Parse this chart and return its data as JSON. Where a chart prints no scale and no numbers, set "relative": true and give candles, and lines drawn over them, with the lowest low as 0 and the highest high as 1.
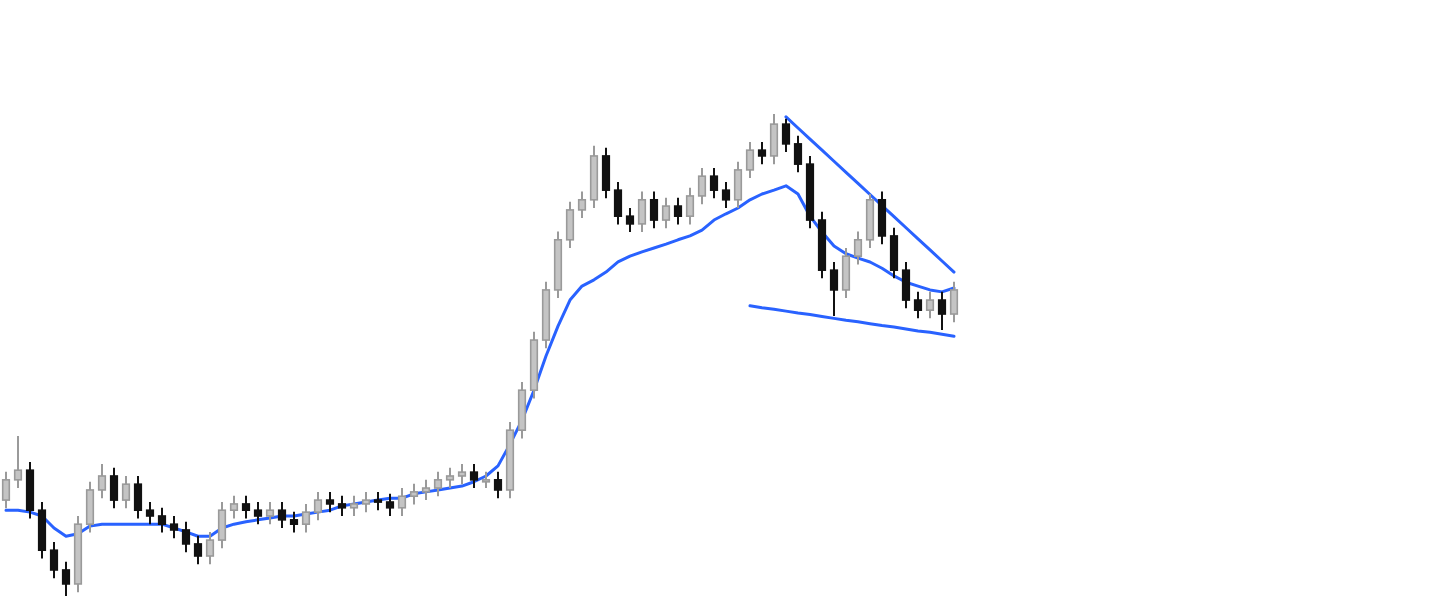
{
  "chart_data": {
    "type": "candlestick",
    "relative": true,
    "tick_labels": false,
    "categories": [
      null,
      null,
      null,
      null,
      null,
      null,
      null,
      null,
      null,
      null,
      null,
      null,
      null,
      null,
      null,
      null,
      null,
      null,
      null,
      null,
      null,
      null,
      null,
      null,
      null,
      null,
      null,
      null,
      null,
      null,
      null,
      null,
      null,
      null,
      null,
      null,
      null,
      null,
      null,
      null,
      null,
      null,
      null,
      null,
      null,
      null,
      null,
      null,
      null,
      null,
      null,
      null,
      null,
      null,
      null,
      null,
      null,
      null,
      null,
      null,
      null,
      null,
      null,
      null,
      null,
      null,
      null,
      null,
      null,
      null,
      null,
      null,
      null,
      null,
      null,
      null,
      null,
      null,
      null,
      null
    ],
    "ohlc": [
      [
        0.199,
        0.258,
        0.182,
        0.241
      ],
      [
        0.241,
        0.332,
        0.224,
        0.261
      ],
      [
        0.261,
        0.278,
        0.161,
        0.178
      ],
      [
        0.178,
        0.195,
        0.078,
        0.095
      ],
      [
        0.095,
        0.112,
        0.037,
        0.054
      ],
      [
        0.054,
        0.071,
        0,
        0.025
      ],
      [
        0.025,
        0.166,
        0.008,
        0.149
      ],
      [
        0.149,
        0.237,
        0.132,
        0.22
      ],
      [
        0.22,
        0.274,
        0.203,
        0.249
      ],
      [
        0.249,
        0.266,
        0.182,
        0.199
      ],
      [
        0.199,
        0.249,
        0.182,
        0.232
      ],
      [
        0.232,
        0.249,
        0.161,
        0.178
      ],
      [
        0.178,
        0.195,
        0.149,
        0.166
      ],
      [
        0.166,
        0.183,
        0.132,
        0.149
      ],
      [
        0.149,
        0.166,
        0.12,
        0.137
      ],
      [
        0.137,
        0.154,
        0.091,
        0.108
      ],
      [
        0.108,
        0.125,
        0.066,
        0.083
      ],
      [
        0.083,
        0.133,
        0.066,
        0.116
      ],
      [
        0.116,
        0.195,
        0.099,
        0.178
      ],
      [
        0.178,
        0.208,
        0.161,
        0.191
      ],
      [
        0.191,
        0.208,
        0.161,
        0.178
      ],
      [
        0.178,
        0.195,
        0.149,
        0.166
      ],
      [
        0.166,
        0.195,
        0.149,
        0.178
      ],
      [
        0.178,
        0.195,
        0.141,
        0.158
      ],
      [
        0.158,
        0.175,
        0.132,
        0.149
      ],
      [
        0.149,
        0.191,
        0.132,
        0.174
      ],
      [
        0.174,
        0.216,
        0.157,
        0.199
      ],
      [
        0.199,
        0.216,
        0.174,
        0.191
      ],
      [
        0.191,
        0.208,
        0.166,
        0.183
      ],
      [
        0.183,
        0.208,
        0.166,
        0.191
      ],
      [
        0.191,
        0.216,
        0.174,
        0.199
      ],
      [
        0.199,
        0.216,
        0.178,
        0.195
      ],
      [
        0.195,
        0.212,
        0.166,
        0.183
      ],
      [
        0.183,
        0.224,
        0.166,
        0.207
      ],
      [
        0.207,
        0.233,
        0.19,
        0.216
      ],
      [
        0.216,
        0.241,
        0.199,
        0.224
      ],
      [
        0.224,
        0.258,
        0.207,
        0.241
      ],
      [
        0.241,
        0.266,
        0.224,
        0.249
      ],
      [
        0.249,
        0.274,
        0.232,
        0.257
      ],
      [
        0.257,
        0.274,
        0.224,
        0.241
      ],
      [
        0.241,
        0.258,
        0.224,
        0.241
      ],
      [
        0.241,
        0.258,
        0.203,
        0.22
      ],
      [
        0.22,
        0.361,
        0.203,
        0.344
      ],
      [
        0.344,
        0.444,
        0.327,
        0.427
      ],
      [
        0.427,
        0.548,
        0.41,
        0.531
      ],
      [
        0.531,
        0.652,
        0.514,
        0.635
      ],
      [
        0.635,
        0.756,
        0.618,
        0.739
      ],
      [
        0.739,
        0.818,
        0.722,
        0.801
      ],
      [
        0.801,
        0.839,
        0.784,
        0.822
      ],
      [
        0.822,
        0.934,
        0.805,
        0.913
      ],
      [
        0.913,
        0.93,
        0.825,
        0.842
      ],
      [
        0.842,
        0.859,
        0.771,
        0.788
      ],
      [
        0.788,
        0.805,
        0.755,
        0.772
      ],
      [
        0.772,
        0.839,
        0.755,
        0.822
      ],
      [
        0.822,
        0.839,
        0.763,
        0.78
      ],
      [
        0.78,
        0.826,
        0.763,
        0.809
      ],
      [
        0.809,
        0.826,
        0.771,
        0.788
      ],
      [
        0.788,
        0.847,
        0.771,
        0.83
      ],
      [
        0.83,
        0.888,
        0.813,
        0.871
      ],
      [
        0.871,
        0.888,
        0.825,
        0.842
      ],
      [
        0.842,
        0.859,
        0.805,
        0.822
      ],
      [
        0.822,
        0.901,
        0.805,
        0.884
      ],
      [
        0.884,
        0.942,
        0.867,
        0.925
      ],
      [
        0.925,
        0.942,
        0.896,
        0.913
      ],
      [
        0.913,
        1,
        0.896,
        0.979
      ],
      [
        0.979,
        0.99,
        0.921,
        0.938
      ],
      [
        0.938,
        0.955,
        0.879,
        0.896
      ],
      [
        0.896,
        0.913,
        0.763,
        0.78
      ],
      [
        0.78,
        0.797,
        0.659,
        0.676
      ],
      [
        0.676,
        0.693,
        0.581,
        0.635
      ],
      [
        0.635,
        0.722,
        0.618,
        0.705
      ],
      [
        0.705,
        0.756,
        0.688,
        0.739
      ],
      [
        0.739,
        0.834,
        0.722,
        0.822
      ],
      [
        0.822,
        0.839,
        0.73,
        0.747
      ],
      [
        0.747,
        0.764,
        0.659,
        0.676
      ],
      [
        0.676,
        0.693,
        0.597,
        0.614
      ],
      [
        0.614,
        0.631,
        0.576,
        0.593
      ],
      [
        0.593,
        0.631,
        0.576,
        0.614
      ],
      [
        0.614,
        0.631,
        0.552,
        0.585
      ],
      [
        0.585,
        0.652,
        0.568,
        0.635
      ]
    ],
    "series": [
      {
        "type": "line",
        "color": "#2962ff",
        "values": [
          0.178,
          0.178,
          0.174,
          0.166,
          0.141,
          0.124,
          0.129,
          0.145,
          0.149,
          0.149,
          0.149,
          0.149,
          0.149,
          0.149,
          0.141,
          0.133,
          0.124,
          0.124,
          0.141,
          0.149,
          0.154,
          0.158,
          0.162,
          0.166,
          0.166,
          0.17,
          0.174,
          0.178,
          0.187,
          0.191,
          0.195,
          0.199,
          0.203,
          0.203,
          0.212,
          0.216,
          0.22,
          0.224,
          0.228,
          0.237,
          0.249,
          0.27,
          0.315,
          0.365,
          0.427,
          0.498,
          0.56,
          0.614,
          0.643,
          0.656,
          0.672,
          0.693,
          0.705,
          0.714,
          0.722,
          0.73,
          0.739,
          0.747,
          0.759,
          0.78,
          0.793,
          0.805,
          0.822,
          0.834,
          0.842,
          0.851,
          0.834,
          0.788,
          0.755,
          0.726,
          0.71,
          0.701,
          0.693,
          0.68,
          0.664,
          0.651,
          0.643,
          0.635,
          0.631,
          0.639
        ]
      },
      {
        "type": "line",
        "color": "#2962ff",
        "values": [
          null,
          null,
          null,
          null,
          null,
          null,
          null,
          null,
          null,
          null,
          null,
          null,
          null,
          null,
          null,
          null,
          null,
          null,
          null,
          null,
          null,
          null,
          null,
          null,
          null,
          null,
          null,
          null,
          null,
          null,
          null,
          null,
          null,
          null,
          null,
          null,
          null,
          null,
          null,
          null,
          null,
          null,
          null,
          null,
          null,
          null,
          null,
          null,
          null,
          null,
          null,
          null,
          null,
          null,
          null,
          null,
          null,
          null,
          null,
          null,
          null,
          null,
          null,
          null,
          null,
          0.994,
          0.971,
          0.948,
          0.925,
          0.902,
          0.879,
          0.856,
          0.833,
          0.81,
          0.787,
          0.764,
          0.741,
          0.718,
          0.695,
          0.672
        ]
      },
      {
        "type": "line",
        "color": "#2962ff",
        "values": [
          null,
          null,
          null,
          null,
          null,
          null,
          null,
          null,
          null,
          null,
          null,
          null,
          null,
          null,
          null,
          null,
          null,
          null,
          null,
          null,
          null,
          null,
          null,
          null,
          null,
          null,
          null,
          null,
          null,
          null,
          null,
          null,
          null,
          null,
          null,
          null,
          null,
          null,
          null,
          null,
          null,
          null,
          null,
          null,
          null,
          null,
          null,
          null,
          null,
          null,
          null,
          null,
          null,
          null,
          null,
          null,
          null,
          null,
          null,
          null,
          null,
          null,
          0.602,
          0.598,
          0.595,
          0.591,
          0.587,
          0.584,
          0.58,
          0.576,
          0.572,
          0.569,
          0.565,
          0.561,
          0.558,
          0.554,
          0.55,
          0.547,
          0.543,
          0.539
        ]
      }
    ]
  }
}
